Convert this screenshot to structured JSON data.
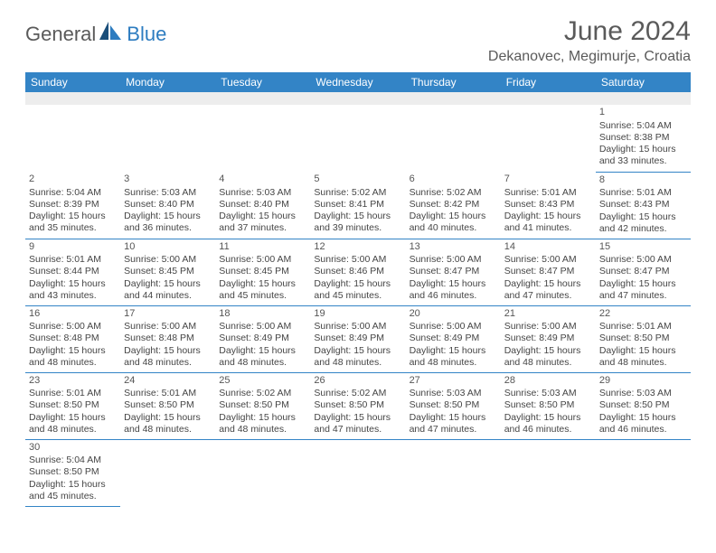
{
  "logo": {
    "part1": "General",
    "part2": "Blue"
  },
  "title": "June 2024",
  "location": "Dekanovec, Megimurje, Croatia",
  "headers": [
    "Sunday",
    "Monday",
    "Tuesday",
    "Wednesday",
    "Thursday",
    "Friday",
    "Saturday"
  ],
  "colors": {
    "header_bg": "#3384c6",
    "header_text": "#ffffff",
    "border": "#3384c6",
    "title_text": "#5a5a5a",
    "logo_blue": "#2d7cc0",
    "logo_grey": "#5a5a5a",
    "blank_row_bg": "#ededed",
    "cell_text": "#454545"
  },
  "layout": {
    "columns": 7,
    "rows": 6,
    "first_day_col": 6
  },
  "days": [
    {
      "n": 1,
      "sunrise": "5:04 AM",
      "sunset": "8:38 PM",
      "daylight": "15 hours and 33 minutes."
    },
    {
      "n": 2,
      "sunrise": "5:04 AM",
      "sunset": "8:39 PM",
      "daylight": "15 hours and 35 minutes."
    },
    {
      "n": 3,
      "sunrise": "5:03 AM",
      "sunset": "8:40 PM",
      "daylight": "15 hours and 36 minutes."
    },
    {
      "n": 4,
      "sunrise": "5:03 AM",
      "sunset": "8:40 PM",
      "daylight": "15 hours and 37 minutes."
    },
    {
      "n": 5,
      "sunrise": "5:02 AM",
      "sunset": "8:41 PM",
      "daylight": "15 hours and 39 minutes."
    },
    {
      "n": 6,
      "sunrise": "5:02 AM",
      "sunset": "8:42 PM",
      "daylight": "15 hours and 40 minutes."
    },
    {
      "n": 7,
      "sunrise": "5:01 AM",
      "sunset": "8:43 PM",
      "daylight": "15 hours and 41 minutes."
    },
    {
      "n": 8,
      "sunrise": "5:01 AM",
      "sunset": "8:43 PM",
      "daylight": "15 hours and 42 minutes."
    },
    {
      "n": 9,
      "sunrise": "5:01 AM",
      "sunset": "8:44 PM",
      "daylight": "15 hours and 43 minutes."
    },
    {
      "n": 10,
      "sunrise": "5:00 AM",
      "sunset": "8:45 PM",
      "daylight": "15 hours and 44 minutes."
    },
    {
      "n": 11,
      "sunrise": "5:00 AM",
      "sunset": "8:45 PM",
      "daylight": "15 hours and 45 minutes."
    },
    {
      "n": 12,
      "sunrise": "5:00 AM",
      "sunset": "8:46 PM",
      "daylight": "15 hours and 45 minutes."
    },
    {
      "n": 13,
      "sunrise": "5:00 AM",
      "sunset": "8:47 PM",
      "daylight": "15 hours and 46 minutes."
    },
    {
      "n": 14,
      "sunrise": "5:00 AM",
      "sunset": "8:47 PM",
      "daylight": "15 hours and 47 minutes."
    },
    {
      "n": 15,
      "sunrise": "5:00 AM",
      "sunset": "8:47 PM",
      "daylight": "15 hours and 47 minutes."
    },
    {
      "n": 16,
      "sunrise": "5:00 AM",
      "sunset": "8:48 PM",
      "daylight": "15 hours and 48 minutes."
    },
    {
      "n": 17,
      "sunrise": "5:00 AM",
      "sunset": "8:48 PM",
      "daylight": "15 hours and 48 minutes."
    },
    {
      "n": 18,
      "sunrise": "5:00 AM",
      "sunset": "8:49 PM",
      "daylight": "15 hours and 48 minutes."
    },
    {
      "n": 19,
      "sunrise": "5:00 AM",
      "sunset": "8:49 PM",
      "daylight": "15 hours and 48 minutes."
    },
    {
      "n": 20,
      "sunrise": "5:00 AM",
      "sunset": "8:49 PM",
      "daylight": "15 hours and 48 minutes."
    },
    {
      "n": 21,
      "sunrise": "5:00 AM",
      "sunset": "8:49 PM",
      "daylight": "15 hours and 48 minutes."
    },
    {
      "n": 22,
      "sunrise": "5:01 AM",
      "sunset": "8:50 PM",
      "daylight": "15 hours and 48 minutes."
    },
    {
      "n": 23,
      "sunrise": "5:01 AM",
      "sunset": "8:50 PM",
      "daylight": "15 hours and 48 minutes."
    },
    {
      "n": 24,
      "sunrise": "5:01 AM",
      "sunset": "8:50 PM",
      "daylight": "15 hours and 48 minutes."
    },
    {
      "n": 25,
      "sunrise": "5:02 AM",
      "sunset": "8:50 PM",
      "daylight": "15 hours and 48 minutes."
    },
    {
      "n": 26,
      "sunrise": "5:02 AM",
      "sunset": "8:50 PM",
      "daylight": "15 hours and 47 minutes."
    },
    {
      "n": 27,
      "sunrise": "5:03 AM",
      "sunset": "8:50 PM",
      "daylight": "15 hours and 47 minutes."
    },
    {
      "n": 28,
      "sunrise": "5:03 AM",
      "sunset": "8:50 PM",
      "daylight": "15 hours and 46 minutes."
    },
    {
      "n": 29,
      "sunrise": "5:03 AM",
      "sunset": "8:50 PM",
      "daylight": "15 hours and 46 minutes."
    },
    {
      "n": 30,
      "sunrise": "5:04 AM",
      "sunset": "8:50 PM",
      "daylight": "15 hours and 45 minutes."
    }
  ],
  "labels": {
    "sunrise": "Sunrise:",
    "sunset": "Sunset:",
    "daylight": "Daylight:"
  }
}
